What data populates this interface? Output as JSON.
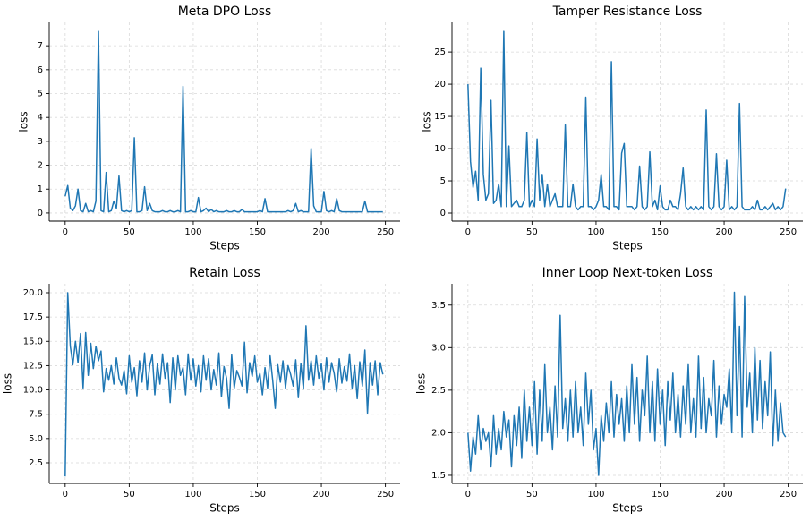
{
  "chart_data": [
    {
      "type": "line",
      "title": "Meta DPO Loss",
      "x_label": "Steps",
      "y_label": "loss",
      "grid": true,
      "x": [
        0,
        2,
        4,
        6,
        8,
        10,
        12,
        14,
        16,
        18,
        20,
        22,
        24,
        26,
        28,
        30,
        32,
        34,
        36,
        38,
        40,
        42,
        44,
        46,
        48,
        50,
        52,
        54,
        56,
        58,
        60,
        62,
        64,
        66,
        68,
        70,
        72,
        74,
        76,
        78,
        80,
        82,
        84,
        86,
        88,
        90,
        92,
        94,
        96,
        98,
        100,
        102,
        104,
        106,
        108,
        110,
        112,
        114,
        116,
        118,
        120,
        122,
        124,
        126,
        128,
        130,
        132,
        134,
        136,
        138,
        140,
        142,
        144,
        146,
        148,
        150,
        152,
        154,
        156,
        158,
        160,
        162,
        164,
        166,
        168,
        170,
        172,
        174,
        176,
        178,
        180,
        182,
        184,
        186,
        188,
        190,
        192,
        194,
        196,
        198,
        200,
        202,
        204,
        206,
        208,
        210,
        212,
        214,
        216,
        218,
        220,
        222,
        224,
        226,
        228,
        230,
        232,
        234,
        236,
        238,
        240,
        242,
        244,
        246,
        248
      ],
      "series": [
        {
          "name": "loss",
          "color": "#1f77b4",
          "values": [
            0.7,
            1.15,
            0.2,
            0.1,
            0.3,
            1.0,
            0.1,
            0.05,
            0.4,
            0.05,
            0.1,
            0.05,
            0.5,
            7.6,
            0.1,
            0.05,
            1.7,
            0.05,
            0.1,
            0.5,
            0.2,
            1.55,
            0.1,
            0.05,
            0.1,
            0.05,
            0.1,
            3.15,
            0.05,
            0.05,
            0.1,
            1.1,
            0.1,
            0.4,
            0.1,
            0.05,
            0.05,
            0.05,
            0.1,
            0.05,
            0.05,
            0.1,
            0.05,
            0.05,
            0.1,
            0.05,
            5.3,
            0.05,
            0.05,
            0.1,
            0.05,
            0.05,
            0.65,
            0.05,
            0.1,
            0.2,
            0.05,
            0.15,
            0.05,
            0.1,
            0.05,
            0.05,
            0.05,
            0.1,
            0.05,
            0.05,
            0.1,
            0.05,
            0.05,
            0.15,
            0.05,
            0.05,
            0.05,
            0.05,
            0.05,
            0.05,
            0.1,
            0.05,
            0.6,
            0.05,
            0.05,
            0.05,
            0.05,
            0.05,
            0.05,
            0.05,
            0.05,
            0.1,
            0.05,
            0.1,
            0.4,
            0.05,
            0.1,
            0.05,
            0.05,
            0.05,
            2.7,
            0.3,
            0.05,
            0.05,
            0.05,
            0.9,
            0.1,
            0.05,
            0.1,
            0.05,
            0.6,
            0.1,
            0.05,
            0.05,
            0.05,
            0.05,
            0.05,
            0.05,
            0.05,
            0.05,
            0.05,
            0.5,
            0.05,
            0.05,
            0.05,
            0.05,
            0.05,
            0.05,
            0.05
          ]
        }
      ],
      "xlim": [
        -12.45,
        261.45
      ],
      "xticks": [
        0,
        50,
        100,
        150,
        200,
        250
      ],
      "ylim": [
        -0.34,
        7.98
      ],
      "yticks": [
        0,
        1,
        2,
        3,
        4,
        5,
        6,
        7
      ]
    },
    {
      "type": "line",
      "title": "Tamper Resistance Loss",
      "x_label": "Steps",
      "y_label": "loss",
      "grid": true,
      "x": [
        0,
        2,
        4,
        6,
        8,
        10,
        12,
        14,
        16,
        18,
        20,
        22,
        24,
        26,
        28,
        30,
        32,
        34,
        36,
        38,
        40,
        42,
        44,
        46,
        48,
        50,
        52,
        54,
        56,
        58,
        60,
        62,
        64,
        66,
        68,
        70,
        72,
        74,
        76,
        78,
        80,
        82,
        84,
        86,
        88,
        90,
        92,
        94,
        96,
        98,
        100,
        102,
        104,
        106,
        108,
        110,
        112,
        114,
        116,
        118,
        120,
        122,
        124,
        126,
        128,
        130,
        132,
        134,
        136,
        138,
        140,
        142,
        144,
        146,
        148,
        150,
        152,
        154,
        156,
        158,
        160,
        162,
        164,
        166,
        168,
        170,
        172,
        174,
        176,
        178,
        180,
        182,
        184,
        186,
        188,
        190,
        192,
        194,
        196,
        198,
        200,
        202,
        204,
        206,
        208,
        210,
        212,
        214,
        216,
        218,
        220,
        222,
        224,
        226,
        228,
        230,
        232,
        234,
        236,
        238,
        240,
        242,
        244,
        246,
        248
      ],
      "series": [
        {
          "name": "loss",
          "color": "#1f77b4",
          "values": [
            20,
            8,
            4,
            6.5,
            2,
            22.5,
            6,
            2,
            3,
            17.5,
            1.5,
            2,
            4.5,
            1,
            28.2,
            1,
            10.4,
            1,
            1.5,
            2,
            1,
            1,
            2,
            12.5,
            1,
            2,
            1,
            11.5,
            2,
            6,
            1,
            4.5,
            1,
            2,
            3,
            1,
            1,
            1,
            13.7,
            1,
            1,
            4.5,
            1,
            0.5,
            1,
            1,
            18,
            1,
            1,
            0.5,
            1,
            2,
            6,
            1,
            1,
            0.5,
            23.5,
            1,
            1,
            0.5,
            9.3,
            10.8,
            1,
            1,
            1,
            0.5,
            1,
            7.3,
            1,
            0.5,
            1,
            9.5,
            1,
            2,
            0.5,
            4.2,
            1,
            0.5,
            0.5,
            2,
            1,
            1,
            0.5,
            3,
            7,
            1,
            0.5,
            1,
            0.5,
            1,
            0.5,
            1,
            0.5,
            16,
            1,
            0.5,
            1,
            9.2,
            1,
            0.5,
            1,
            8.2,
            0.5,
            1,
            0.5,
            1,
            17,
            1,
            0.5,
            0.5,
            0.5,
            1,
            0.5,
            2,
            0.5,
            0.5,
            1,
            0.5,
            1,
            1.5,
            0.5,
            1,
            0.5,
            1,
            3.8
          ]
        }
      ],
      "xlim": [
        -12.45,
        261.45
      ],
      "xticks": [
        0,
        50,
        100,
        150,
        200,
        250
      ],
      "ylim": [
        -1.25,
        29.6
      ],
      "yticks": [
        0,
        5,
        10,
        15,
        20,
        25
      ]
    },
    {
      "type": "line",
      "title": "Retain Loss",
      "x_label": "Steps",
      "y_label": "loss",
      "grid": true,
      "x": [
        0,
        2,
        4,
        6,
        8,
        10,
        12,
        14,
        16,
        18,
        20,
        22,
        24,
        26,
        28,
        30,
        32,
        34,
        36,
        38,
        40,
        42,
        44,
        46,
        48,
        50,
        52,
        54,
        56,
        58,
        60,
        62,
        64,
        66,
        68,
        70,
        72,
        74,
        76,
        78,
        80,
        82,
        84,
        86,
        88,
        90,
        92,
        94,
        96,
        98,
        100,
        102,
        104,
        106,
        108,
        110,
        112,
        114,
        116,
        118,
        120,
        122,
        124,
        126,
        128,
        130,
        132,
        134,
        136,
        138,
        140,
        142,
        144,
        146,
        148,
        150,
        152,
        154,
        156,
        158,
        160,
        162,
        164,
        166,
        168,
        170,
        172,
        174,
        176,
        178,
        180,
        182,
        184,
        186,
        188,
        190,
        192,
        194,
        196,
        198,
        200,
        202,
        204,
        206,
        208,
        210,
        212,
        214,
        216,
        218,
        220,
        222,
        224,
        226,
        228,
        230,
        232,
        234,
        236,
        238,
        240,
        242,
        244,
        246,
        248
      ],
      "series": [
        {
          "name": "loss",
          "color": "#1f77b4",
          "values": [
            1.1,
            20,
            14.5,
            12.6,
            15,
            12.8,
            15.8,
            10.2,
            15.9,
            11.5,
            14.8,
            12.2,
            14.5,
            13,
            14,
            9.8,
            12.2,
            11,
            12.5,
            10.6,
            13.3,
            11.2,
            10.5,
            12,
            9.6,
            13.5,
            10.8,
            12.3,
            9.4,
            13,
            10.8,
            13.8,
            10,
            12.5,
            13.6,
            9.5,
            12.7,
            10.6,
            13.7,
            11.2,
            12.8,
            8.7,
            13.3,
            10,
            13.5,
            11.5,
            12.3,
            9.5,
            13.7,
            11,
            13.2,
            10.4,
            12.5,
            9.8,
            13.5,
            11,
            13.2,
            10,
            12.1,
            10.5,
            13.8,
            9.3,
            12.4,
            11.2,
            8.1,
            13.6,
            10.2,
            12,
            11.3,
            10.4,
            14.9,
            9.7,
            12.8,
            11.4,
            13.5,
            10.8,
            11.7,
            9.5,
            12.3,
            10.2,
            13.5,
            11,
            8.1,
            12.6,
            10.8,
            13,
            10.2,
            12.5,
            11.6,
            10.4,
            13.1,
            9.2,
            12.7,
            10.1,
            16.6,
            11,
            13,
            10.5,
            13.5,
            11.2,
            12.7,
            10,
            13.3,
            10.8,
            12.8,
            11.7,
            9.8,
            13.2,
            10.7,
            12.4,
            10.9,
            13.7,
            10.2,
            12.5,
            9.1,
            12.9,
            10.4,
            14.1,
            7.6,
            12.8,
            10.5,
            13,
            9.5,
            12.8,
            11.6
          ]
        }
      ],
      "xlim": [
        -12.45,
        261.45
      ],
      "xticks": [
        0,
        50,
        100,
        150,
        200,
        250
      ],
      "ylim": [
        0.38,
        20.92
      ],
      "yticks": [
        2.5,
        {
          "value": 5,
          "label": "5.0"
        },
        7.5,
        {
          "value": 10,
          "label": "10.0"
        },
        12.5,
        {
          "value": 15,
          "label": "15.0"
        },
        17.5,
        {
          "value": 20,
          "label": "20.0"
        }
      ]
    },
    {
      "type": "line",
      "title": "Inner Loop Next-token Loss",
      "x_label": "Steps",
      "y_label": "loss",
      "grid": true,
      "x": [
        0,
        2,
        4,
        6,
        8,
        10,
        12,
        14,
        16,
        18,
        20,
        22,
        24,
        26,
        28,
        30,
        32,
        34,
        36,
        38,
        40,
        42,
        44,
        46,
        48,
        50,
        52,
        54,
        56,
        58,
        60,
        62,
        64,
        66,
        68,
        70,
        72,
        74,
        76,
        78,
        80,
        82,
        84,
        86,
        88,
        90,
        92,
        94,
        96,
        98,
        100,
        102,
        104,
        106,
        108,
        110,
        112,
        114,
        116,
        118,
        120,
        122,
        124,
        126,
        128,
        130,
        132,
        134,
        136,
        138,
        140,
        142,
        144,
        146,
        148,
        150,
        152,
        154,
        156,
        158,
        160,
        162,
        164,
        166,
        168,
        170,
        172,
        174,
        176,
        178,
        180,
        182,
        184,
        186,
        188,
        190,
        192,
        194,
        196,
        198,
        200,
        202,
        204,
        206,
        208,
        210,
        212,
        214,
        216,
        218,
        220,
        222,
        224,
        226,
        228,
        230,
        232,
        234,
        236,
        238,
        240,
        242,
        244,
        246,
        248
      ],
      "series": [
        {
          "name": "loss",
          "color": "#1f77b4",
          "values": [
            2.0,
            1.55,
            1.95,
            1.75,
            2.2,
            1.8,
            2.05,
            1.9,
            2.0,
            1.6,
            2.2,
            1.75,
            2.05,
            1.8,
            2.25,
            1.95,
            2.15,
            1.6,
            2.2,
            1.85,
            2.3,
            1.7,
            2.5,
            1.9,
            2.3,
            1.85,
            2.6,
            1.75,
            2.5,
            1.9,
            2.8,
            2.0,
            2.3,
            1.8,
            2.55,
            1.95,
            3.38,
            2.05,
            2.4,
            1.9,
            2.5,
            1.95,
            2.6,
            2.0,
            2.3,
            1.85,
            2.7,
            2.1,
            2.5,
            1.8,
            2.05,
            1.5,
            2.2,
            1.9,
            2.35,
            2.0,
            2.6,
            1.95,
            2.45,
            2.1,
            2.4,
            1.9,
            2.55,
            2.0,
            2.8,
            2.1,
            2.65,
            1.9,
            2.5,
            2.2,
            2.9,
            2.0,
            2.6,
            1.9,
            2.75,
            2.1,
            2.5,
            1.85,
            2.6,
            2.15,
            2.7,
            2.0,
            2.45,
            1.95,
            2.55,
            2.1,
            2.8,
            2.0,
            2.4,
            1.95,
            2.9,
            2.05,
            2.65,
            2.0,
            2.4,
            2.2,
            2.85,
            1.95,
            2.55,
            2.1,
            2.45,
            2.3,
            2.75,
            2.0,
            3.65,
            2.2,
            3.25,
            1.95,
            3.6,
            2.3,
            2.7,
            2.0,
            3.0,
            2.15,
            2.85,
            2.05,
            2.6,
            2.2,
            2.95,
            1.85,
            2.5,
            1.9,
            2.35,
            2.0,
            1.95
          ]
        }
      ],
      "xlim": [
        -12.45,
        261.45
      ],
      "xticks": [
        0,
        50,
        100,
        150,
        200,
        250
      ],
      "ylim": [
        1.405,
        3.75
      ],
      "yticks": [
        1.5,
        {
          "value": 2,
          "label": "2.0"
        },
        2.5,
        {
          "value": 3,
          "label": "3.0"
        },
        3.5
      ]
    }
  ]
}
